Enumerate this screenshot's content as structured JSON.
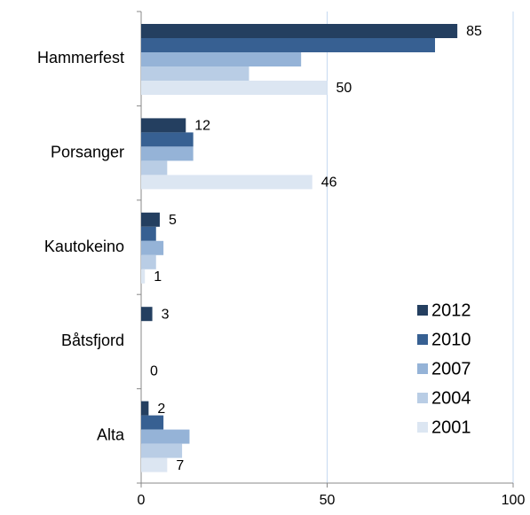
{
  "chart_data": {
    "type": "barh",
    "categories": [
      "Hammerfest",
      "Porsanger",
      "Kautokeino",
      "Båtsfjord",
      "Alta"
    ],
    "series": [
      {
        "name": "2012",
        "color": "#243f60",
        "values": [
          85,
          12,
          5,
          3,
          2
        ],
        "data_labels": true
      },
      {
        "name": "2010",
        "color": "#376092",
        "values": [
          79,
          14,
          4,
          0,
          6
        ],
        "data_labels": false
      },
      {
        "name": "2007",
        "color": "#95b3d7",
        "values": [
          43,
          14,
          6,
          0,
          13
        ],
        "data_labels": false
      },
      {
        "name": "2004",
        "color": "#b9cde5",
        "values": [
          29,
          7,
          4,
          0,
          11
        ],
        "data_labels": false
      },
      {
        "name": "2001",
        "color": "#dce6f2",
        "values": [
          50,
          46,
          1,
          0,
          7
        ],
        "data_labels": true
      }
    ],
    "xlim": [
      0,
      100
    ],
    "xticks": [
      0,
      50,
      100
    ],
    "grid": true,
    "legend": "lower right"
  }
}
